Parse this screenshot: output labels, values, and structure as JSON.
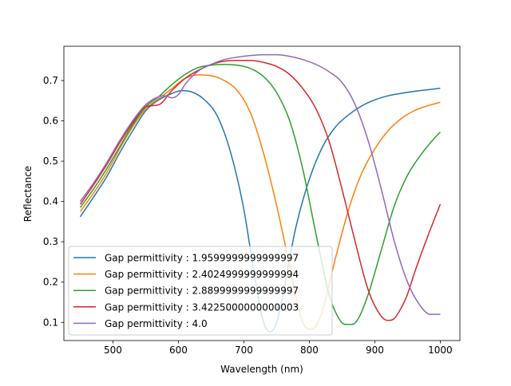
{
  "chart_data": {
    "type": "line",
    "xlabel": "Wavelength (nm)",
    "ylabel": "Reflectance",
    "xlim": [
      425,
      1030
    ],
    "ylim": [
      0.055,
      0.785
    ],
    "xticks": [
      500,
      600,
      700,
      800,
      900,
      1000
    ],
    "yticks": [
      0.1,
      0.2,
      0.3,
      0.4,
      0.5,
      0.6,
      0.7
    ],
    "grid": false,
    "legend_position": "lower-left",
    "colors": [
      "#1f77b4",
      "#ff7f0e",
      "#2ca02c",
      "#d62728",
      "#9467bd"
    ],
    "series": [
      {
        "name": "Gap permittivity : 1.9599999999999997",
        "x": [
          450,
          470,
          490,
          510,
          530,
          550,
          570,
          590,
          605,
          620,
          640,
          660,
          680,
          700,
          710,
          720,
          730,
          740,
          750,
          760,
          770,
          780,
          800,
          820,
          840,
          860,
          880,
          900,
          920,
          940,
          960,
          980,
          1000
        ],
        "y": [
          0.362,
          0.41,
          0.46,
          0.52,
          0.575,
          0.625,
          0.652,
          0.668,
          0.675,
          0.672,
          0.652,
          0.61,
          0.52,
          0.38,
          0.28,
          0.18,
          0.1,
          0.077,
          0.1,
          0.17,
          0.26,
          0.34,
          0.455,
          0.535,
          0.585,
          0.615,
          0.637,
          0.652,
          0.662,
          0.668,
          0.673,
          0.677,
          0.681
        ]
      },
      {
        "name": "Gap permittivity : 2.4024999999999994",
        "x": [
          450,
          470,
          490,
          510,
          530,
          550,
          570,
          590,
          610,
          630,
          650,
          670,
          690,
          710,
          730,
          750,
          770,
          780,
          790,
          800,
          810,
          820,
          840,
          860,
          880,
          900,
          920,
          940,
          960,
          980,
          1000
        ],
        "y": [
          0.375,
          0.42,
          0.47,
          0.53,
          0.585,
          0.63,
          0.655,
          0.68,
          0.705,
          0.714,
          0.712,
          0.7,
          0.675,
          0.62,
          0.52,
          0.39,
          0.24,
          0.16,
          0.1,
          0.083,
          0.09,
          0.13,
          0.26,
          0.38,
          0.47,
          0.53,
          0.575,
          0.605,
          0.625,
          0.637,
          0.646
        ]
      },
      {
        "name": "Gap permittivity : 2.8899999999999997",
        "x": [
          450,
          470,
          490,
          510,
          530,
          550,
          570,
          590,
          610,
          630,
          650,
          670,
          690,
          710,
          730,
          750,
          770,
          790,
          810,
          830,
          845,
          855,
          865,
          875,
          890,
          910,
          930,
          950,
          970,
          990,
          1000
        ],
        "y": [
          0.385,
          0.43,
          0.48,
          0.535,
          0.59,
          0.635,
          0.66,
          0.69,
          0.715,
          0.732,
          0.738,
          0.74,
          0.738,
          0.73,
          0.71,
          0.67,
          0.6,
          0.48,
          0.32,
          0.17,
          0.11,
          0.095,
          0.095,
          0.11,
          0.17,
          0.28,
          0.39,
          0.465,
          0.515,
          0.555,
          0.572
        ]
      },
      {
        "name": "Gap permittivity : 3.4225000000000003",
        "x": [
          450,
          470,
          490,
          510,
          530,
          550,
          570,
          590,
          610,
          630,
          650,
          670,
          690,
          710,
          730,
          750,
          770,
          790,
          810,
          830,
          850,
          870,
          890,
          910,
          920,
          930,
          940,
          950,
          960,
          980,
          1000
        ],
        "y": [
          0.393,
          0.44,
          0.49,
          0.545,
          0.595,
          0.635,
          0.64,
          0.675,
          0.705,
          0.725,
          0.74,
          0.748,
          0.75,
          0.75,
          0.745,
          0.735,
          0.715,
          0.68,
          0.63,
          0.55,
          0.43,
          0.3,
          0.18,
          0.115,
          0.105,
          0.11,
          0.135,
          0.17,
          0.22,
          0.31,
          0.393
        ]
      },
      {
        "name": "Gap permittivity : 4.0",
        "x": [
          450,
          470,
          490,
          510,
          530,
          550,
          570,
          580,
          590,
          600,
          610,
          630,
          650,
          670,
          690,
          710,
          730,
          750,
          770,
          790,
          810,
          830,
          850,
          870,
          890,
          910,
          930,
          950,
          970,
          985,
          1000
        ],
        "y": [
          0.4,
          0.445,
          0.495,
          0.55,
          0.6,
          0.64,
          0.66,
          0.662,
          0.657,
          0.665,
          0.69,
          0.723,
          0.74,
          0.752,
          0.758,
          0.762,
          0.764,
          0.764,
          0.76,
          0.752,
          0.74,
          0.722,
          0.695,
          0.64,
          0.55,
          0.43,
          0.3,
          0.2,
          0.14,
          0.12,
          0.12
        ]
      }
    ]
  }
}
